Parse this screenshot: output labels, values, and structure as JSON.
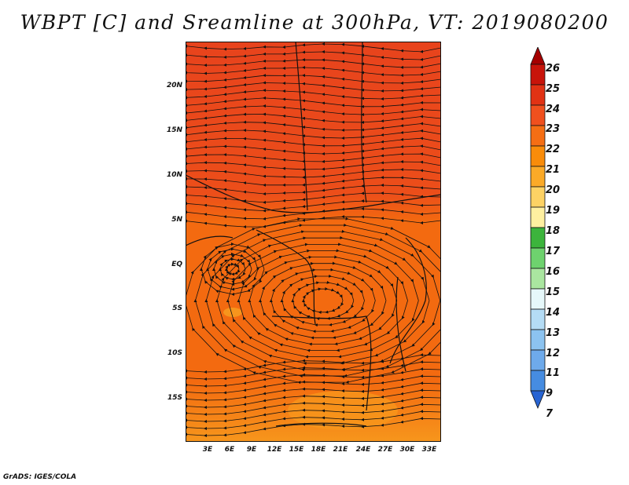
{
  "title": "WBPT [C] and Sreamline at 300hPa, VT: 2019080200",
  "footer": "GrADS: IGES/COLA",
  "map": {
    "lat_labels": [
      "20N",
      "15N",
      "10N",
      "5N",
      "EQ",
      "5S",
      "10S",
      "15S"
    ],
    "lon_labels": [
      "3E",
      "6E",
      "9E",
      "12E",
      "15E",
      "18E",
      "21E",
      "24E",
      "27E",
      "30E",
      "33E"
    ],
    "fill_color_north": "#e8431c",
    "fill_color_main": "#f36a10",
    "fill_color_south": "#f7961c"
  },
  "colorbar": {
    "labels": [
      "26",
      "25",
      "24",
      "23",
      "22",
      "21",
      "20",
      "19",
      "18",
      "17",
      "16",
      "15",
      "14",
      "13",
      "12",
      "11",
      "9",
      "7"
    ],
    "colors": [
      "#a50000",
      "#c8140a",
      "#e13214",
      "#f0501e",
      "#f56e14",
      "#f98c0a",
      "#fbaa28",
      "#fdd264",
      "#fff0a0",
      "#3cb43c",
      "#6ed26e",
      "#aae6a0",
      "#e6f8fa",
      "#b4dcf5",
      "#8cc3f0",
      "#6eaaeb",
      "#468ce1",
      "#2864d2"
    ]
  }
}
